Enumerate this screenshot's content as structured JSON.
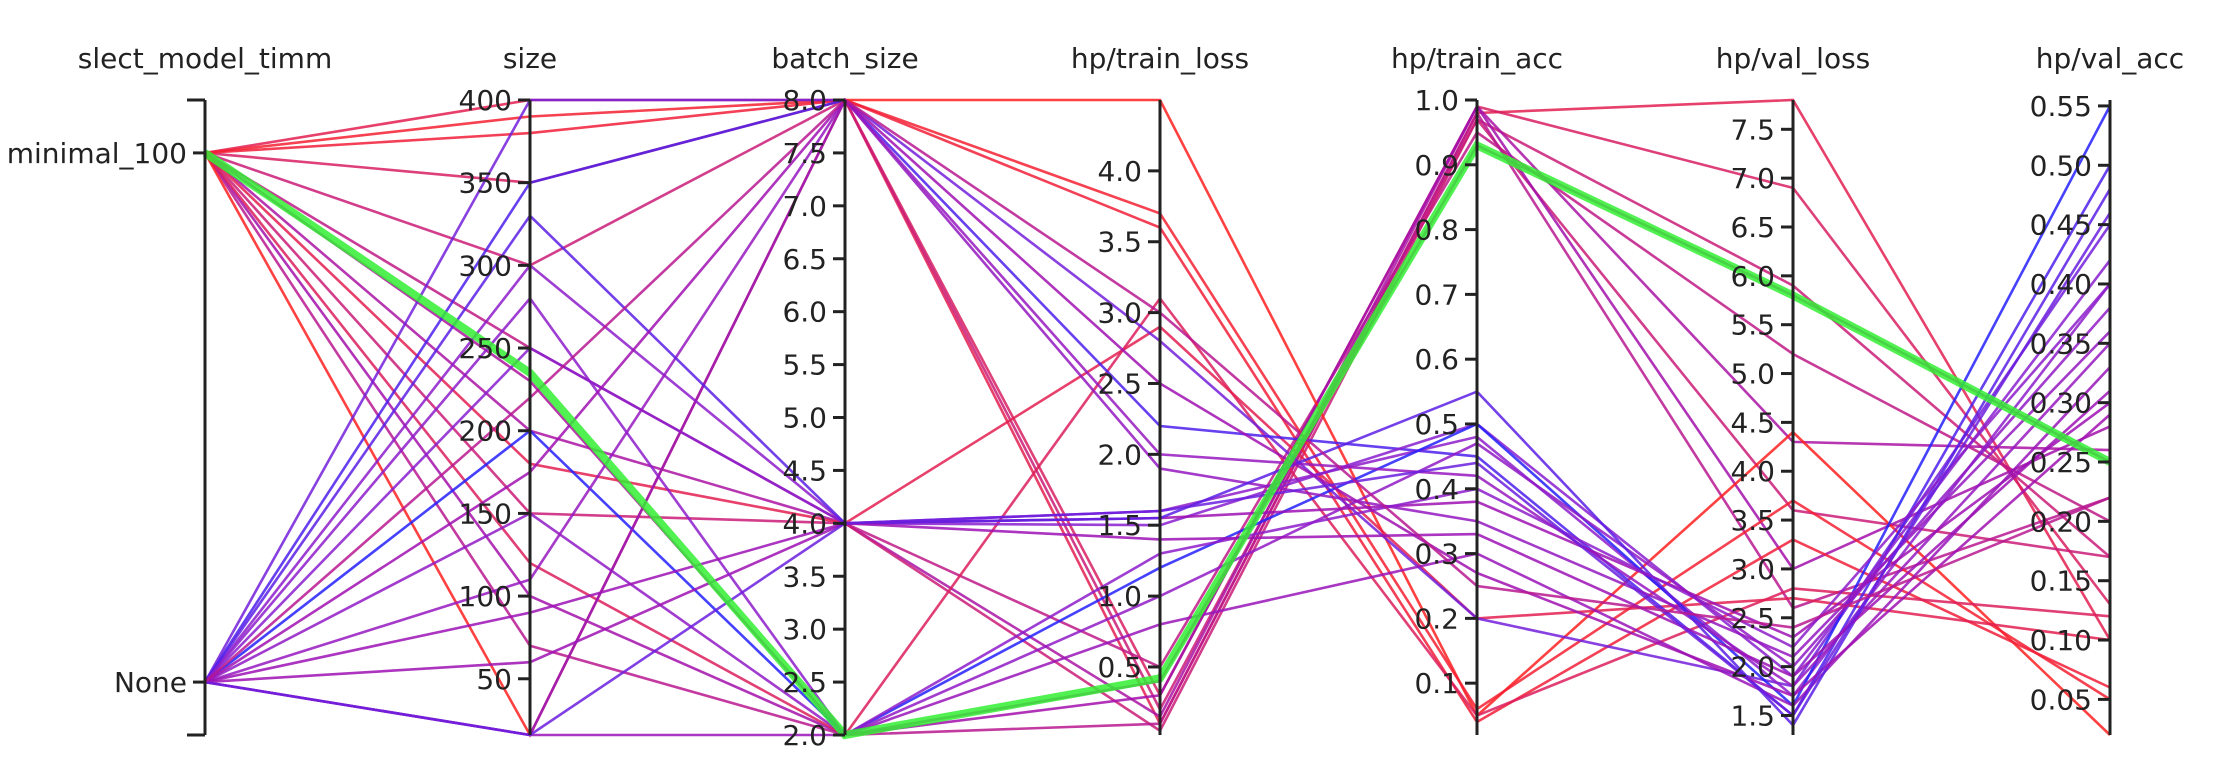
{
  "chart_data": {
    "type": "parallel_coordinates",
    "axes": [
      {
        "key": "model",
        "label": "slect_model_timm",
        "categorical": true,
        "categories": [
          "None",
          "minimal_100"
        ],
        "range": [
          -0.1,
          1.1
        ],
        "ticks": [
          0,
          1
        ],
        "tick_labels": [
          "None",
          "minimal_100"
        ]
      },
      {
        "key": "size",
        "label": "size",
        "range": [
          16,
          400
        ],
        "ticks": [
          50,
          100,
          150,
          200,
          250,
          300,
          350,
          400
        ],
        "tick_labels": [
          "50",
          "100",
          "150",
          "200",
          "250",
          "300",
          "350",
          "400"
        ]
      },
      {
        "key": "batch_size",
        "label": "batch_size",
        "range": [
          2.0,
          8.0
        ],
        "ticks": [
          2.0,
          2.5,
          3.0,
          3.5,
          4.0,
          4.5,
          5.0,
          5.5,
          6.0,
          6.5,
          7.0,
          7.5,
          8.0
        ],
        "tick_labels": [
          "2.0",
          "2.5",
          "3.0",
          "3.5",
          "4.0",
          "4.5",
          "5.0",
          "5.5",
          "6.0",
          "6.5",
          "7.0",
          "7.5",
          "8.0"
        ]
      },
      {
        "key": "train_loss",
        "label": "hp/train_loss",
        "range": [
          0.02,
          4.5
        ],
        "ticks": [
          0.5,
          1.0,
          1.5,
          2.0,
          2.5,
          3.0,
          3.5,
          4.0
        ],
        "tick_labels": [
          "0.5",
          "1.0",
          "1.5",
          "2.0",
          "2.5",
          "3.0",
          "3.5",
          "4.0"
        ]
      },
      {
        "key": "train_acc",
        "label": "hp/train_acc",
        "range": [
          0.02,
          1.0
        ],
        "ticks": [
          0.1,
          0.2,
          0.3,
          0.4,
          0.5,
          0.6,
          0.7,
          0.8,
          0.9,
          1.0
        ],
        "tick_labels": [
          "0.1",
          "0.2",
          "0.3",
          "0.4",
          "0.5",
          "0.6",
          "0.7",
          "0.8",
          "0.9",
          "1.0"
        ]
      },
      {
        "key": "val_loss",
        "label": "hp/val_loss",
        "range": [
          1.3,
          7.8
        ],
        "ticks": [
          1.5,
          2.0,
          2.5,
          3.0,
          3.5,
          4.0,
          4.5,
          5.0,
          5.5,
          6.0,
          6.5,
          7.0,
          7.5
        ],
        "tick_labels": [
          "1.5",
          "2.0",
          "2.5",
          "3.0",
          "3.5",
          "4.0",
          "4.5",
          "5.0",
          "5.5",
          "6.0",
          "6.5",
          "7.0",
          "7.5"
        ]
      },
      {
        "key": "val_acc",
        "label": "hp/val_acc",
        "range": [
          0.02,
          0.555
        ],
        "ticks": [
          0.05,
          0.1,
          0.15,
          0.2,
          0.25,
          0.3,
          0.35,
          0.4,
          0.45,
          0.5,
          0.55
        ],
        "tick_labels": [
          "0.05",
          "0.10",
          "0.15",
          "0.20",
          "0.25",
          "0.30",
          "0.35",
          "0.40",
          "0.45",
          "0.50",
          "0.55"
        ]
      }
    ],
    "color_by": "hp/val_acc",
    "colorscale": [
      "#ff2020",
      "#d01e70",
      "#a010b0",
      "#8a1ed0",
      "#2020ff"
    ],
    "highlight_color": "#33ee33",
    "rows": [
      [
        1,
        400,
        8,
        0.1,
        0.98,
        7.8,
        0.1
      ],
      [
        1,
        350,
        8,
        0.3,
        0.99,
        6.9,
        0.13
      ],
      [
        1,
        300,
        8,
        0.2,
        0.97,
        5.9,
        0.17
      ],
      [
        1,
        250,
        4,
        0.5,
        0.95,
        5.2,
        0.2
      ],
      [
        1,
        200,
        4,
        0.15,
        0.99,
        4.3,
        0.26
      ],
      [
        1,
        150,
        4,
        0.05,
        0.97,
        3.6,
        0.17
      ],
      [
        1,
        100,
        2,
        0.3,
        0.99,
        3.0,
        0.28
      ],
      [
        1,
        70,
        2,
        0.1,
        0.98,
        2.6,
        0.22
      ],
      [
        1,
        230,
        2,
        0.4,
        0.93,
        5.8,
        0.25
      ],
      [
        1,
        16,
        8,
        4.5,
        0.05,
        4.4,
        0.02
      ],
      [
        1,
        390,
        8,
        3.7,
        0.06,
        3.7,
        0.05
      ],
      [
        1,
        380,
        8,
        3.6,
        0.04,
        3.3,
        0.06
      ],
      [
        1,
        120,
        2,
        3.1,
        0.05,
        2.8,
        0.12
      ],
      [
        1,
        180,
        4,
        2.9,
        0.2,
        2.7,
        0.1
      ],
      [
        0,
        400,
        8,
        2.8,
        0.2,
        1.8,
        0.45
      ],
      [
        0,
        350,
        8,
        2.2,
        0.45,
        1.5,
        0.5
      ],
      [
        0,
        300,
        4,
        1.6,
        0.48,
        1.7,
        0.4
      ],
      [
        0,
        250,
        4,
        1.5,
        0.5,
        1.9,
        0.42
      ],
      [
        0,
        200,
        2,
        1.2,
        0.5,
        1.6,
        0.55
      ],
      [
        0,
        150,
        2,
        1.0,
        0.47,
        2.0,
        0.38
      ],
      [
        0,
        110,
        8,
        2.0,
        0.42,
        1.8,
        0.35
      ],
      [
        0,
        60,
        4,
        1.55,
        0.38,
        2.3,
        0.3
      ],
      [
        0,
        16,
        2,
        0.8,
        0.3,
        1.6,
        0.33
      ],
      [
        0,
        16,
        8,
        1.9,
        0.35,
        2.1,
        0.36
      ],
      [
        0,
        330,
        4,
        1.55,
        0.55,
        1.4,
        0.48
      ],
      [
        0,
        280,
        2,
        1.3,
        0.4,
        2.2,
        0.4
      ],
      [
        0,
        175,
        8,
        2.5,
        0.27,
        1.7,
        0.29
      ],
      [
        0,
        90,
        4,
        1.4,
        0.33,
        1.9,
        0.31
      ],
      [
        0,
        16,
        4,
        1.6,
        0.44,
        1.5,
        0.46
      ],
      [
        0,
        220,
        8,
        3.0,
        0.25,
        2.4,
        0.22
      ]
    ],
    "highlight_row": [
      1,
      235,
      2,
      0.42,
      0.93,
      5.8,
      0.25
    ],
    "title": "",
    "grid": false,
    "legend": "none"
  }
}
